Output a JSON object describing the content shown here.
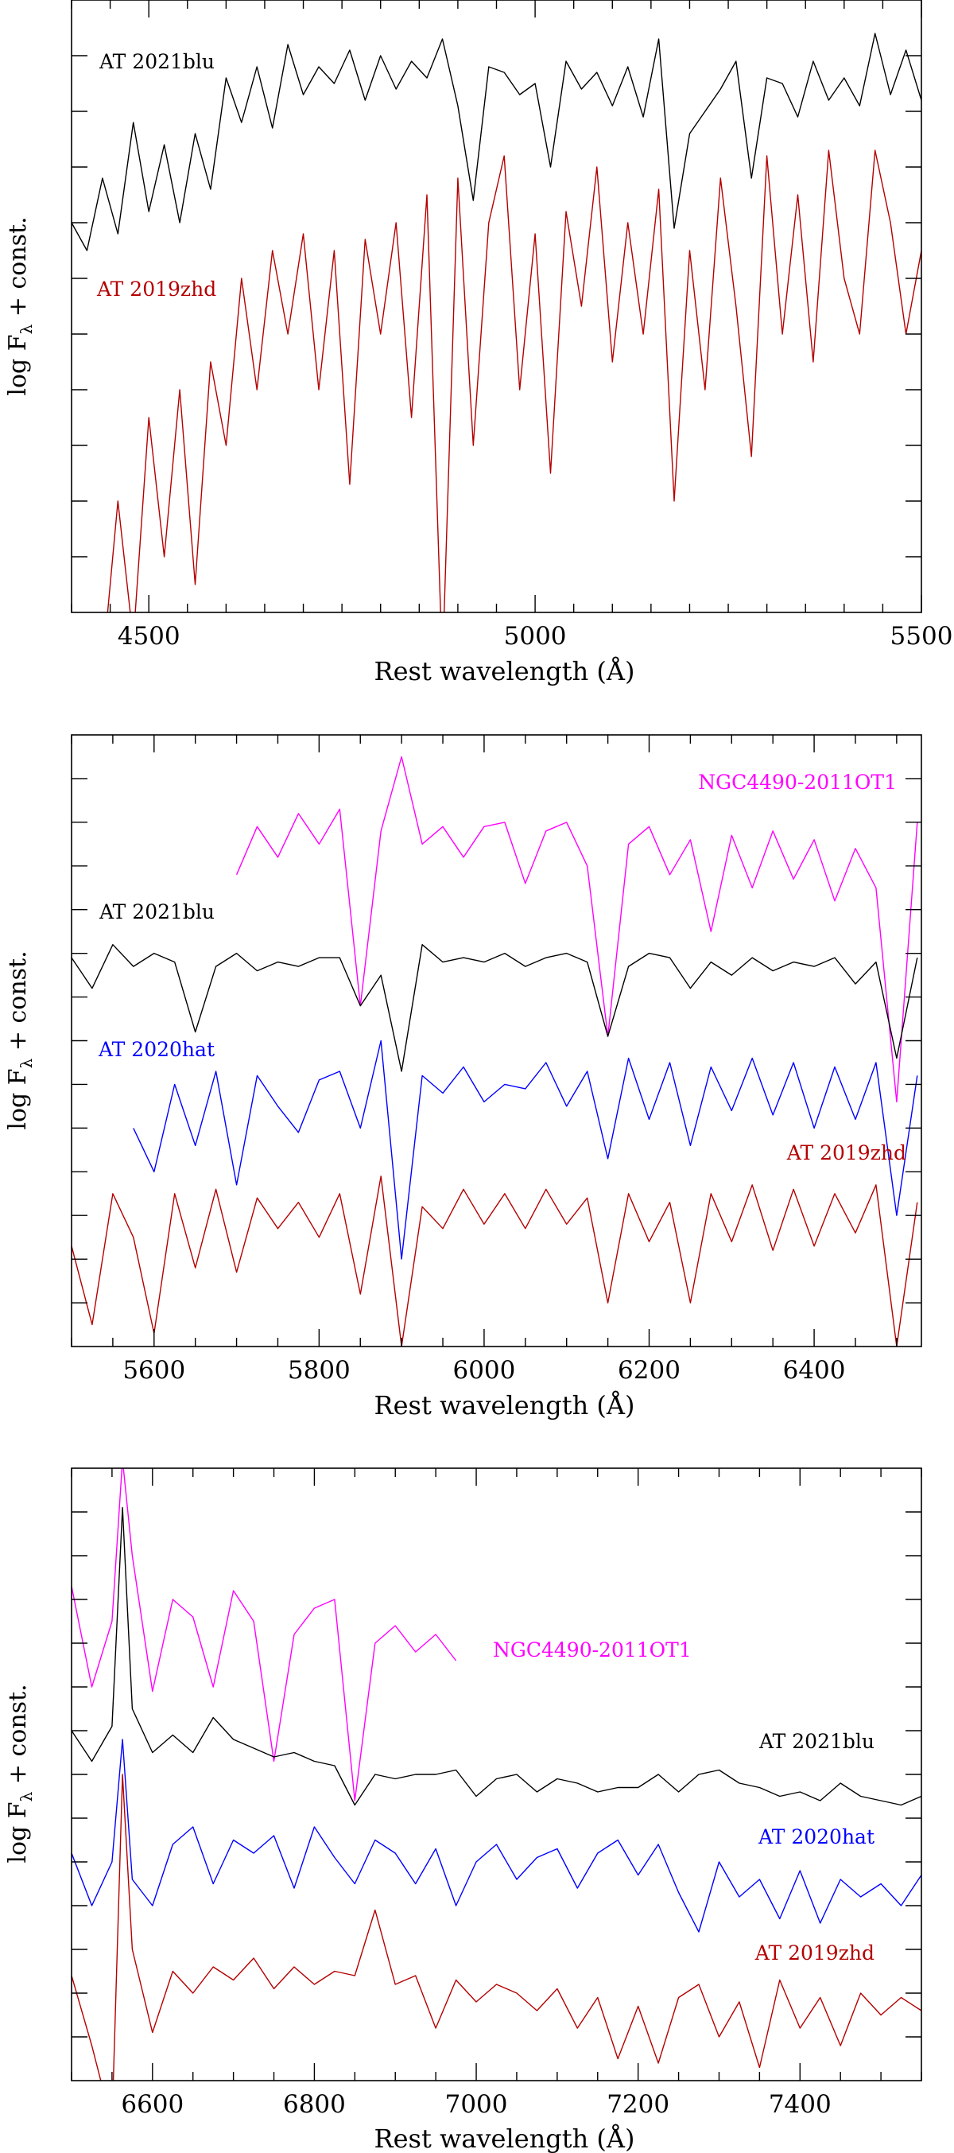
{
  "chart_data": [
    {
      "type": "line",
      "title": "",
      "xlabel": "Rest wavelength (Å)",
      "ylabel": {
        "main": "log F",
        "sub": "λ",
        "rest": " + const."
      },
      "xlim": [
        4400,
        5500
      ],
      "ylim": [
        0,
        11
      ],
      "xticks_major": [
        4500,
        5000,
        5500
      ],
      "xtick_labels": [
        "4500",
        "5000",
        "5500"
      ],
      "xtick_minor_step": 50,
      "ytick_step": 1,
      "grid": false,
      "series": [
        {
          "name": "AT 2021blu",
          "color": "#000000",
          "x_start": 4400,
          "x_step": 20,
          "values": [
            7.0,
            6.5,
            7.8,
            6.8,
            8.8,
            7.2,
            8.4,
            7.0,
            8.6,
            7.6,
            9.6,
            8.8,
            9.8,
            8.7,
            10.2,
            9.3,
            9.8,
            9.5,
            10.1,
            9.2,
            10.0,
            9.4,
            9.9,
            9.6,
            10.3,
            9.1,
            7.4,
            9.8,
            9.7,
            9.3,
            9.5,
            8.0,
            9.9,
            9.4,
            9.7,
            9.1,
            9.8,
            8.9,
            10.3,
            6.9,
            8.6,
            9.0,
            9.4,
            9.9,
            7.8,
            9.6,
            9.5,
            8.9,
            9.9,
            9.2,
            9.6,
            9.1,
            10.4,
            9.3,
            10.1,
            9.2
          ]
        },
        {
          "name": "AT 2019zhd",
          "color": "#b40000",
          "x_start": 4440,
          "x_step": 20,
          "values": [
            -1.0,
            2.0,
            -0.5,
            3.5,
            1.0,
            4.0,
            0.5,
            4.5,
            3.0,
            6.0,
            4.0,
            6.5,
            5.0,
            6.8,
            4.0,
            6.5,
            2.3,
            6.7,
            5.0,
            7.0,
            3.5,
            7.5,
            -1.0,
            7.8,
            3.0,
            7.0,
            8.2,
            4.0,
            6.8,
            2.5,
            7.2,
            5.5,
            8.0,
            4.5,
            7.0,
            5.0,
            7.6,
            2.0,
            6.5,
            4.0,
            7.8,
            5.5,
            2.8,
            8.2,
            5.0,
            7.5,
            4.5,
            8.3,
            6.0,
            5.0,
            8.3,
            7.0,
            5.0,
            6.5
          ]
        }
      ]
    },
    {
      "type": "line",
      "title": "",
      "xlabel": "Rest wavelength (Å)",
      "ylabel": {
        "main": "log F",
        "sub": "λ",
        "rest": " + const."
      },
      "xlim": [
        5500,
        6530
      ],
      "ylim": [
        0,
        14
      ],
      "xticks_major": [
        5600,
        5800,
        6000,
        6200,
        6400
      ],
      "xtick_labels": [
        "5600",
        "5800",
        "6000",
        "6200",
        "6400"
      ],
      "xtick_minor_step": 50,
      "ytick_step": 1,
      "grid": false,
      "series": [
        {
          "name": "NGC4490-2011OT1",
          "color": "#ff00ff",
          "x_start": 5700,
          "x_step": 25,
          "values": [
            10.8,
            11.9,
            11.2,
            12.2,
            11.5,
            12.3,
            7.8,
            11.8,
            13.5,
            11.5,
            11.9,
            11.2,
            11.9,
            12.0,
            10.6,
            11.8,
            12.0,
            11.0,
            7.1,
            11.5,
            11.9,
            10.8,
            11.6,
            9.5,
            11.7,
            10.5,
            11.8,
            10.7,
            11.6,
            10.2,
            11.4,
            10.5,
            5.6,
            12.0
          ]
        },
        {
          "name": "AT 2021blu",
          "color": "#000000",
          "x_start": 5500,
          "x_step": 25,
          "values": [
            8.9,
            8.2,
            9.2,
            8.7,
            9.0,
            8.8,
            7.2,
            8.7,
            9.0,
            8.6,
            8.8,
            8.7,
            8.9,
            8.9,
            7.8,
            8.5,
            6.3,
            9.2,
            8.8,
            8.9,
            8.8,
            9.0,
            8.7,
            8.9,
            9.0,
            8.8,
            7.1,
            8.7,
            9.0,
            8.9,
            8.2,
            8.8,
            8.5,
            8.9,
            8.6,
            8.8,
            8.7,
            8.9,
            8.3,
            8.8,
            6.6,
            8.9
          ]
        },
        {
          "name": "AT 2020hat",
          "color": "#0000ff",
          "x_start": 5575,
          "x_step": 25,
          "values": [
            5.0,
            4.0,
            6.0,
            4.6,
            6.3,
            3.7,
            6.2,
            5.5,
            4.9,
            6.1,
            6.3,
            5.0,
            7.0,
            2.0,
            6.2,
            5.8,
            6.4,
            5.6,
            6.0,
            5.9,
            6.5,
            5.5,
            6.3,
            4.3,
            6.6,
            5.2,
            6.5,
            4.6,
            6.4,
            5.4,
            6.6,
            5.3,
            6.5,
            5.0,
            6.4,
            5.2,
            6.5,
            3.0,
            6.2
          ]
        },
        {
          "name": "AT 2019zhd",
          "color": "#b40000",
          "x_start": 5500,
          "x_step": 25,
          "values": [
            2.3,
            0.5,
            3.5,
            2.5,
            0.3,
            3.5,
            1.8,
            3.6,
            1.7,
            3.4,
            2.7,
            3.3,
            2.5,
            3.5,
            1.2,
            3.9,
            0.0,
            3.2,
            2.7,
            3.6,
            2.8,
            3.5,
            2.7,
            3.6,
            2.8,
            3.4,
            1.0,
            3.5,
            2.4,
            3.3,
            1.0,
            3.5,
            2.4,
            3.7,
            2.2,
            3.6,
            2.3,
            3.5,
            2.6,
            3.7,
            0.0,
            3.3
          ]
        }
      ]
    },
    {
      "type": "line",
      "title": "",
      "xlabel": "Rest wavelength (Å)",
      "ylabel": {
        "main": "log F",
        "sub": "λ",
        "rest": " + const."
      },
      "xlim": [
        6500,
        7550
      ],
      "ylim": [
        0,
        14
      ],
      "xticks_major": [
        6600,
        6800,
        7000,
        7200,
        7400
      ],
      "xtick_labels": [
        "6600",
        "6800",
        "7000",
        "7200",
        "7400"
      ],
      "xtick_minor_step": 50,
      "ytick_step": 1,
      "grid": false,
      "x": [
        6500,
        6525,
        6550,
        6563,
        6575,
        6600,
        6625,
        6650,
        6675,
        6700,
        6725,
        6750,
        6775,
        6800,
        6825,
        6850,
        6875,
        6900,
        6925,
        6950,
        6975,
        7000,
        7025,
        7050,
        7075,
        7100,
        7125,
        7150,
        7175,
        7200,
        7225,
        7250,
        7275,
        7300,
        7325,
        7350,
        7375,
        7400,
        7425,
        7450,
        7475,
        7500,
        7525,
        7550
      ],
      "series": [
        {
          "name": "NGC4490-2011OT1",
          "color": "#ff00ff",
          "values": [
            11.3,
            9.0,
            10.5,
            14.2,
            12.0,
            8.9,
            11.0,
            10.6,
            9.0,
            11.2,
            10.5,
            7.3,
            10.2,
            10.8,
            11.0,
            6.4,
            10.0,
            10.4,
            9.8,
            10.2,
            9.6,
            null,
            null,
            null,
            null,
            null,
            null,
            null,
            null,
            null,
            null,
            null,
            null,
            null,
            null,
            null,
            null,
            null,
            null,
            null,
            null,
            null,
            null,
            null
          ]
        },
        {
          "name": "AT 2021blu",
          "color": "#000000",
          "values": [
            8.0,
            7.3,
            8.1,
            13.1,
            8.5,
            7.5,
            7.9,
            7.5,
            8.3,
            7.8,
            7.6,
            7.4,
            7.5,
            7.3,
            7.2,
            6.3,
            7.0,
            6.9,
            7.0,
            7.0,
            7.1,
            6.5,
            6.9,
            7.0,
            6.6,
            6.9,
            6.8,
            6.6,
            6.7,
            6.7,
            7.0,
            6.6,
            7.0,
            7.1,
            6.8,
            6.7,
            6.5,
            6.6,
            6.4,
            6.8,
            6.5,
            6.4,
            6.3,
            6.5
          ]
        },
        {
          "name": "AT 2020hat",
          "color": "#0000ff",
          "values": [
            5.2,
            4.0,
            5.0,
            7.8,
            4.6,
            4.0,
            5.4,
            5.8,
            4.5,
            5.5,
            5.2,
            5.6,
            4.4,
            5.8,
            5.1,
            4.5,
            5.5,
            5.2,
            4.5,
            5.3,
            4.0,
            5.0,
            5.4,
            4.6,
            5.1,
            5.3,
            4.4,
            5.2,
            5.5,
            4.7,
            5.4,
            4.3,
            3.4,
            5.0,
            4.2,
            4.6,
            3.7,
            4.8,
            3.6,
            4.6,
            4.2,
            4.5,
            4.0,
            4.7
          ]
        },
        {
          "name": "AT 2019zhd",
          "color": "#b40000",
          "values": [
            2.4,
            0.8,
            -1.0,
            7.0,
            3.0,
            1.1,
            2.5,
            2.0,
            2.6,
            2.3,
            2.8,
            2.1,
            2.6,
            2.2,
            2.5,
            2.4,
            3.9,
            2.2,
            2.4,
            1.2,
            2.3,
            1.8,
            2.2,
            2.0,
            1.6,
            2.1,
            1.2,
            1.9,
            0.5,
            1.7,
            0.4,
            1.9,
            2.2,
            1.0,
            1.8,
            0.3,
            2.3,
            1.2,
            1.9,
            0.8,
            2.0,
            1.5,
            1.9,
            1.6
          ]
        }
      ]
    }
  ]
}
